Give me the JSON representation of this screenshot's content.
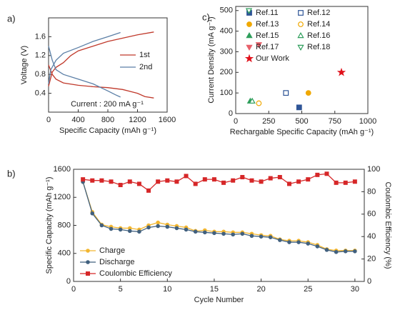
{
  "chart_data": [
    {
      "type": "line",
      "panel_label": "a)",
      "xlabel": "Specific Capacity (mAh g⁻¹)",
      "ylabel": "Voltage (V)",
      "annotation": "Current : 200 mA g⁻¹",
      "xlim": [
        0,
        1600
      ],
      "xticks": [
        0,
        400,
        800,
        1200,
        1600
      ],
      "ylim": [
        0,
        2.0
      ],
      "yticks": [
        0.4,
        0.8,
        1.2,
        1.6
      ],
      "legend": "right",
      "series": [
        {
          "name": "1st",
          "color": "#c0392b",
          "x": [
            0,
            50,
            100,
            200,
            400,
            600,
            800,
            1000,
            1200,
            1300,
            1420,
            null,
            0,
            50,
            100,
            200,
            300,
            400,
            600,
            800,
            1000,
            1200,
            1420
          ],
          "values": [
            1.0,
            0.8,
            0.7,
            0.62,
            0.57,
            0.54,
            0.52,
            0.48,
            0.4,
            0.33,
            0.3,
            null,
            0.55,
            0.85,
            0.95,
            1.05,
            1.2,
            1.3,
            1.4,
            1.5,
            1.57,
            1.64,
            1.7
          ]
        },
        {
          "name": "2nd",
          "color": "#5b7fa6",
          "x": [
            0,
            50,
            100,
            200,
            400,
            600,
            800,
            900,
            970,
            null,
            0,
            30,
            100,
            200,
            400,
            600,
            800,
            970
          ],
          "values": [
            1.4,
            1.1,
            0.9,
            0.8,
            0.7,
            0.6,
            0.45,
            0.37,
            0.32,
            null,
            0.6,
            0.9,
            1.1,
            1.25,
            1.37,
            1.5,
            1.6,
            1.69
          ]
        }
      ]
    },
    {
      "type": "scatter",
      "panel_label": "c)",
      "xlabel": "Rechargable Specific Capacity (mAh g⁻¹)",
      "ylabel": "Current Density (mA g⁻¹)",
      "xlim": [
        0,
        1000
      ],
      "xticks": [
        0,
        250,
        500,
        750,
        1000
      ],
      "ylim": [
        0,
        520
      ],
      "yticks": [
        0,
        100,
        200,
        300,
        400,
        500
      ],
      "legend": "upper right",
      "series": [
        {
          "name": "Ref.11",
          "color": "#2f5597",
          "marker": "square",
          "filled": true,
          "x": [
            480
          ],
          "values": [
            30
          ]
        },
        {
          "name": "Ref.12",
          "color": "#2f5597",
          "marker": "square",
          "filled": false,
          "x": [
            380
          ],
          "values": [
            100
          ]
        },
        {
          "name": "Ref.13",
          "color": "#f0a800",
          "marker": "circle",
          "filled": true,
          "x": [
            550
          ],
          "values": [
            100
          ]
        },
        {
          "name": "Ref.14",
          "color": "#f0a800",
          "marker": "circle",
          "filled": false,
          "x": [
            175
          ],
          "values": [
            50
          ]
        },
        {
          "name": "Ref.15",
          "color": "#2e9e5b",
          "marker": "triangle",
          "filled": true,
          "x": [
            110
          ],
          "values": [
            60
          ]
        },
        {
          "name": "Ref.16",
          "color": "#2e9e5b",
          "marker": "triangle",
          "filled": false,
          "x": [
            125
          ],
          "values": [
            60
          ]
        },
        {
          "name": "Ref.17",
          "color": "#e8606a",
          "marker": "triangle-down",
          "filled": true,
          "x": [
            175
          ],
          "values": [
            335
          ]
        },
        {
          "name": "Ref.18",
          "color": "#2e9e5b",
          "marker": "triangle-down",
          "filled": false,
          "x": [
            100
          ],
          "values": [
            500
          ]
        },
        {
          "name": "Our Work",
          "color": "#e0101a",
          "marker": "star",
          "filled": true,
          "x": [
            800
          ],
          "values": [
            200
          ]
        }
      ]
    },
    {
      "type": "line",
      "panel_label": "b)",
      "xlabel": "Cycle Number",
      "ylabel": "Specific Capacity (mAh g⁻¹)",
      "y2label": "Coulombic Efficiency (%)",
      "xlim": [
        0,
        31
      ],
      "xticks": [
        0,
        5,
        10,
        15,
        20,
        25,
        30
      ],
      "ylim": [
        0,
        1600
      ],
      "yticks": [
        0,
        400,
        800,
        1200,
        1600
      ],
      "y2lim": [
        0,
        100
      ],
      "y2ticks": [
        0,
        20,
        40,
        60,
        80,
        100
      ],
      "legend": "lower left",
      "x": [
        1,
        2,
        3,
        4,
        5,
        6,
        7,
        8,
        9,
        10,
        11,
        12,
        13,
        14,
        15,
        16,
        17,
        18,
        19,
        20,
        21,
        22,
        23,
        24,
        25,
        26,
        27,
        28,
        29,
        30
      ],
      "series": [
        {
          "name": "Charge",
          "color": "#f2b630",
          "marker": "circle",
          "values": [
            1420,
            990,
            810,
            780,
            760,
            760,
            740,
            800,
            840,
            810,
            790,
            770,
            720,
            730,
            710,
            710,
            700,
            700,
            680,
            660,
            650,
            600,
            580,
            580,
            560,
            520,
            460,
            440,
            440,
            440
          ]
        },
        {
          "name": "Discharge",
          "color": "#41607e",
          "marker": "circle",
          "values": [
            1420,
            970,
            800,
            750,
            740,
            720,
            710,
            770,
            790,
            780,
            760,
            740,
            710,
            700,
            690,
            680,
            670,
            680,
            650,
            640,
            630,
            590,
            560,
            560,
            540,
            500,
            450,
            420,
            430,
            430
          ]
        },
        {
          "name": "Coulombic Efficiency",
          "color": "#d62728",
          "marker": "square",
          "axis": "y2",
          "values": [
            91,
            90,
            90,
            89,
            86,
            89,
            87,
            81,
            89,
            90,
            89,
            94,
            87,
            91,
            91,
            88,
            90,
            93,
            90,
            89,
            92,
            93,
            87,
            89,
            91,
            95,
            96,
            88,
            88,
            89
          ]
        }
      ]
    }
  ]
}
